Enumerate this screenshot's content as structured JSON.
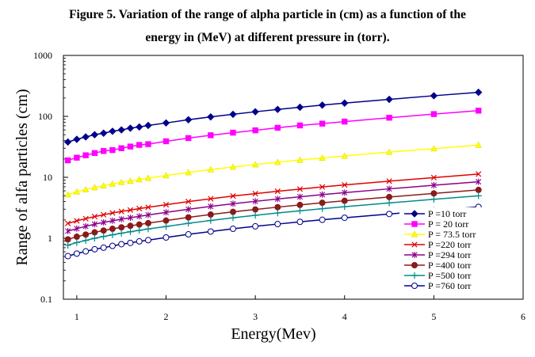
{
  "figure": {
    "caption_line1": "Figure 5. Variation of the range of alpha particle in (cm) as a function of the",
    "caption_line2": "energy in (MeV) at different pressure in (torr)."
  },
  "chart_data": {
    "type": "line",
    "xlabel": "Energy(Mev)",
    "ylabel": "Range of alfa particles (cm)",
    "xlim": [
      0.85,
      6.0
    ],
    "ylim": [
      0.1,
      1000
    ],
    "yscale": "log",
    "x_ticks": [
      "1",
      "2",
      "3",
      "4",
      "5",
      "6"
    ],
    "y_ticks": [
      "0.1",
      "1",
      "10",
      "100",
      "1000"
    ],
    "grid": false,
    "legend_position": "lower-right",
    "x": [
      0.9,
      1.0,
      1.1,
      1.2,
      1.3,
      1.4,
      1.5,
      1.6,
      1.7,
      1.8,
      2.0,
      2.25,
      2.5,
      2.75,
      3.0,
      3.25,
      3.5,
      3.75,
      4.0,
      4.5,
      5.0,
      5.5
    ],
    "series": [
      {
        "name": "P =10 torr",
        "color": "#00008b",
        "marker": "diamond",
        "values": [
          38,
          42,
          46,
          50,
          53,
          57,
          60,
          64,
          67,
          71,
          78,
          88,
          98,
          108,
          119,
          130,
          141,
          153,
          165,
          190,
          218,
          248
        ]
      },
      {
        "name": "P = 20 torr",
        "color": "#ff00ff",
        "marker": "square",
        "values": [
          19,
          21,
          23,
          25,
          27,
          28,
          30,
          32,
          34,
          35,
          39,
          44,
          49,
          54,
          59,
          65,
          71,
          76,
          82,
          95,
          109,
          124
        ]
      },
      {
        "name": "P = 73.5 torr",
        "color": "#ffff00",
        "marker": "triangle",
        "values": [
          5.2,
          5.8,
          6.3,
          6.8,
          7.3,
          7.8,
          8.3,
          8.7,
          9.2,
          9.7,
          10.7,
          12,
          13.4,
          14.8,
          16.2,
          17.7,
          19.2,
          20.8,
          22.4,
          25.9,
          29.6,
          33.8
        ]
      },
      {
        "name": "P =220 torr",
        "color": "#e00000",
        "marker": "x",
        "values": [
          1.75,
          1.93,
          2.1,
          2.27,
          2.43,
          2.6,
          2.75,
          2.9,
          3.07,
          3.22,
          3.55,
          4.0,
          4.45,
          4.93,
          5.4,
          5.9,
          6.4,
          6.95,
          7.5,
          8.65,
          9.9,
          11.3
        ]
      },
      {
        "name": "P =294 torr",
        "color": "#8b008b",
        "marker": "star",
        "values": [
          1.31,
          1.44,
          1.57,
          1.7,
          1.82,
          1.94,
          2.06,
          2.17,
          2.29,
          2.41,
          2.66,
          2.99,
          3.33,
          3.69,
          4.04,
          4.41,
          4.79,
          5.2,
          5.61,
          6.47,
          7.41,
          8.45
        ]
      },
      {
        "name": "P =400 torr",
        "color": "#8b1a1a",
        "marker": "circle-filled",
        "values": [
          0.96,
          1.06,
          1.15,
          1.25,
          1.34,
          1.43,
          1.51,
          1.6,
          1.68,
          1.77,
          1.95,
          2.2,
          2.45,
          2.71,
          2.97,
          3.24,
          3.52,
          3.82,
          4.12,
          4.75,
          5.44,
          6.21
        ]
      },
      {
        "name": "P =500 torr",
        "color": "#008b8b",
        "marker": "plus",
        "values": [
          0.77,
          0.85,
          0.92,
          1.0,
          1.07,
          1.14,
          1.21,
          1.28,
          1.35,
          1.42,
          1.56,
          1.76,
          1.96,
          2.17,
          2.38,
          2.6,
          2.82,
          3.06,
          3.3,
          3.8,
          4.36,
          4.97
        ]
      },
      {
        "name": "P =760 torr",
        "color": "#00008b",
        "marker": "circle-open",
        "values": [
          0.51,
          0.56,
          0.61,
          0.66,
          0.7,
          0.75,
          0.8,
          0.84,
          0.89,
          0.93,
          1.03,
          1.16,
          1.29,
          1.43,
          1.57,
          1.71,
          1.86,
          2.01,
          2.17,
          2.5,
          2.87,
          3.27
        ]
      }
    ]
  }
}
